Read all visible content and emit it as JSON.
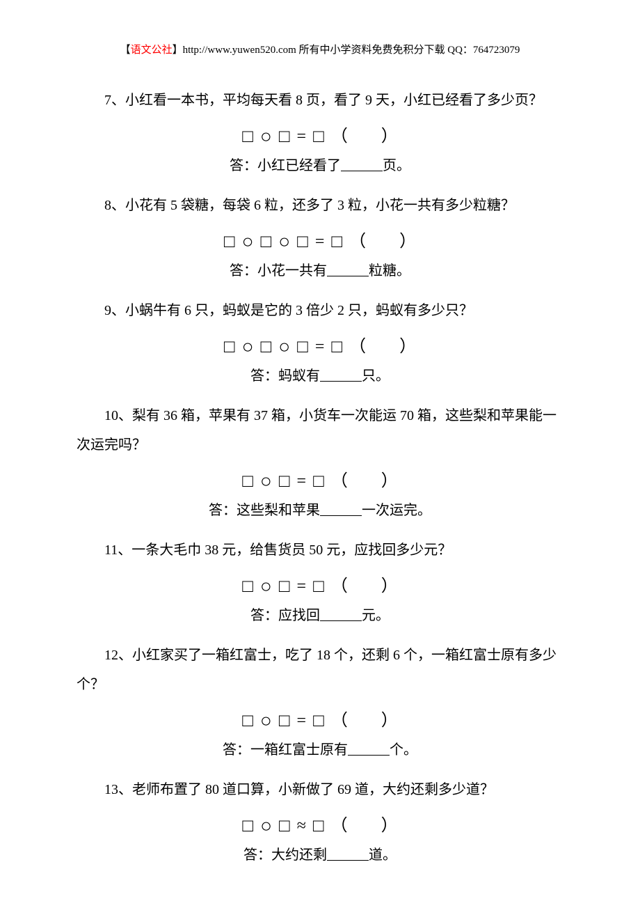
{
  "header": {
    "prefix": "【",
    "red_text": "语文公社",
    "suffix": "】http://www.yuwen520.com 所有中小学资料免费免积分下载 QQ：764723079"
  },
  "questions": [
    {
      "num": "7",
      "text": "、小红看一本书，平均每天看 8 页，看了 9 天，小红已经看了多少页？",
      "formula_parts": [
        "□",
        "○",
        "□",
        "=",
        "□"
      ],
      "answer_prefix": "答：小红已经看了",
      "answer_suffix": "页。"
    },
    {
      "num": "8",
      "text": "、小花有 5 袋糖，每袋 6 粒，还多了 3 粒，小花一共有多少粒糖？",
      "formula_parts": [
        "□",
        "○",
        "□",
        "○",
        "□",
        "=",
        "□"
      ],
      "answer_prefix": "答：小花一共有",
      "answer_suffix": "粒糖。"
    },
    {
      "num": "9",
      "text": "、小蜗牛有 6 只，蚂蚁是它的 3 倍少 2 只，蚂蚁有多少只？",
      "formula_parts": [
        "□",
        "○",
        "□",
        "○",
        "□",
        "=",
        "□"
      ],
      "answer_prefix": "答：蚂蚁有",
      "answer_suffix": "只。"
    },
    {
      "num": "10",
      "text": "、梨有 36 箱，苹果有 37 箱，小货车一次能运 70 箱，这些梨和苹果能一次运完吗？",
      "formula_parts": [
        "□",
        "○",
        "□",
        "=",
        "□"
      ],
      "answer_prefix": "答：这些梨和苹果",
      "answer_suffix": "一次运完。"
    },
    {
      "num": "11",
      "text": "、一条大毛巾 38 元，给售货员 50 元，应找回多少元？",
      "formula_parts": [
        "□",
        "○",
        "□",
        "=",
        "□"
      ],
      "answer_prefix": "答：应找回",
      "answer_suffix": "元。"
    },
    {
      "num": "12",
      "text": "、小红家买了一箱红富士，吃了 18 个，还剩 6 个，一箱红富士原有多少个？",
      "formula_parts": [
        "□",
        "○",
        "□",
        "=",
        "□"
      ],
      "answer_prefix": "答：一箱红富士原有",
      "answer_suffix": "个。"
    },
    {
      "num": "13",
      "text": "、老师布置了 80 道口算，小新做了 69 道，大约还剩多少道？",
      "formula_parts": [
        "□",
        "○",
        "□",
        "≈",
        "□"
      ],
      "answer_prefix": "答：大约还剩",
      "answer_suffix": "道。"
    }
  ],
  "paren_text": "（　　）"
}
